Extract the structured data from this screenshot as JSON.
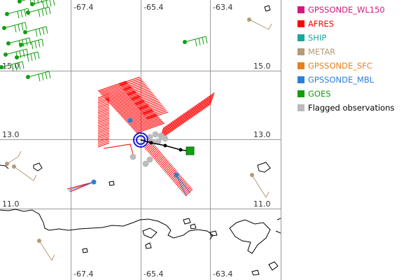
{
  "map": {
    "x_ticks": [
      "-67.4",
      "-65.4",
      "-63.4"
    ],
    "y_ticks": [
      "15.0",
      "13.0",
      "11.0"
    ]
  },
  "legend": {
    "items": [
      {
        "label": "GPSSONDE_WL150",
        "color": "#d6187d"
      },
      {
        "label": "AFRES",
        "color": "#ff0000"
      },
      {
        "label": "SHIP",
        "color": "#1aa79d"
      },
      {
        "label": "METAR",
        "color": "#b39a78"
      },
      {
        "label": "GPSSONDE_SFC",
        "color": "#e8801c"
      },
      {
        "label": "GPSSONDE_MBL",
        "color": "#2d7fd6"
      },
      {
        "label": "GOES",
        "color": "#119e11"
      },
      {
        "label": "Flagged observations",
        "color": "#bbbbbb",
        "text_color": "#000000"
      }
    ]
  }
}
